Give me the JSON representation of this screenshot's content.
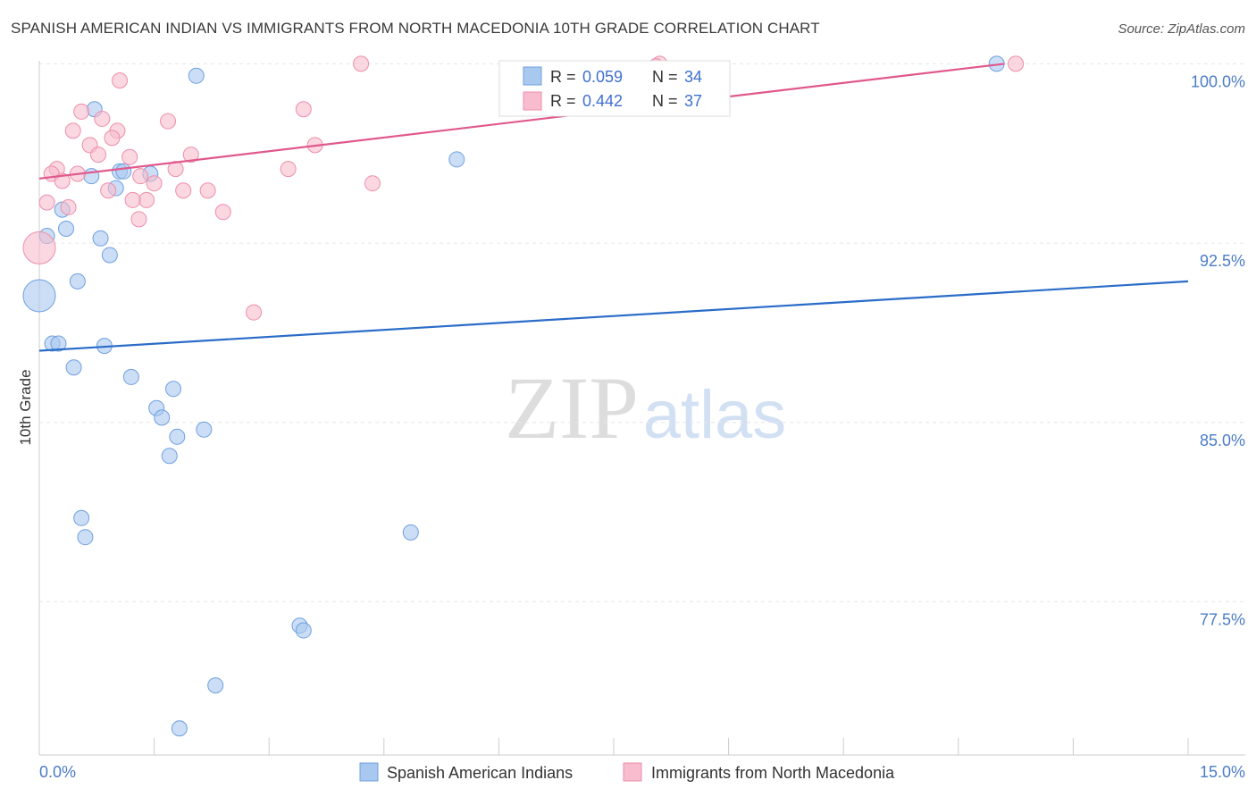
{
  "header": {
    "title": "SPANISH AMERICAN INDIAN VS IMMIGRANTS FROM NORTH MACEDONIA 10TH GRADE CORRELATION CHART",
    "source": "Source: ZipAtlas.com"
  },
  "watermark": {
    "zip": "ZIP",
    "atlas": "atlas"
  },
  "chart_data": {
    "type": "scatter",
    "title": "SPANISH AMERICAN INDIAN VS IMMIGRANTS FROM NORTH MACEDONIA 10TH GRADE CORRELATION CHART",
    "ylabel": "10th Grade",
    "xlim": [
      0,
      15
    ],
    "ylim": [
      71.2,
      100.8
    ],
    "x_tick_labels": [
      "0.0%",
      "15.0%"
    ],
    "y_ticks": [
      {
        "value": 100.0,
        "label": "100.0%"
      },
      {
        "value": 92.5,
        "label": "92.5%"
      },
      {
        "value": 85.0,
        "label": "85.0%"
      },
      {
        "value": 77.5,
        "label": "77.5%"
      }
    ],
    "legend": {
      "rows": [
        {
          "r_label": "R =",
          "r_value": "0.059",
          "n_label": "N =",
          "n_value": "34"
        },
        {
          "r_label": "R =",
          "r_value": "0.442",
          "n_label": "N =",
          "n_value": "37"
        }
      ]
    },
    "series": [
      {
        "name": "Spanish American Indians",
        "color": "#a8c8f0",
        "stroke": "#6f9fe0",
        "line_color": "#2a6cc8",
        "trend": {
          "x0": 0.0,
          "y0": 88.0,
          "x1": 15.0,
          "y1": 90.9
        },
        "points": [
          {
            "x": 2.05,
            "y": 99.5,
            "s": 1
          },
          {
            "x": 0.72,
            "y": 98.1,
            "s": 1
          },
          {
            "x": 5.45,
            "y": 96.0,
            "s": 1
          },
          {
            "x": 1.05,
            "y": 95.5,
            "s": 1
          },
          {
            "x": 1.45,
            "y": 95.4,
            "s": 1
          },
          {
            "x": 0.68,
            "y": 95.3,
            "s": 1
          },
          {
            "x": 1.0,
            "y": 94.8,
            "s": 1
          },
          {
            "x": 0.3,
            "y": 93.9,
            "s": 1
          },
          {
            "x": 0.35,
            "y": 93.1,
            "s": 1
          },
          {
            "x": 0.1,
            "y": 92.8,
            "s": 1
          },
          {
            "x": 0.8,
            "y": 92.7,
            "s": 1
          },
          {
            "x": 0.92,
            "y": 92.0,
            "s": 1
          },
          {
            "x": 0.5,
            "y": 90.9,
            "s": 1
          },
          {
            "x": 0.0,
            "y": 90.3,
            "s": 2
          },
          {
            "x": 0.17,
            "y": 88.3,
            "s": 1
          },
          {
            "x": 0.25,
            "y": 88.3,
            "s": 1
          },
          {
            "x": 0.85,
            "y": 88.2,
            "s": 1
          },
          {
            "x": 0.45,
            "y": 87.3,
            "s": 1
          },
          {
            "x": 1.2,
            "y": 86.9,
            "s": 1
          },
          {
            "x": 1.75,
            "y": 86.4,
            "s": 1
          },
          {
            "x": 1.53,
            "y": 85.6,
            "s": 1
          },
          {
            "x": 1.6,
            "y": 85.2,
            "s": 1
          },
          {
            "x": 2.15,
            "y": 84.7,
            "s": 1
          },
          {
            "x": 1.8,
            "y": 84.4,
            "s": 1
          },
          {
            "x": 1.7,
            "y": 83.6,
            "s": 1
          },
          {
            "x": 0.55,
            "y": 81.0,
            "s": 1
          },
          {
            "x": 0.6,
            "y": 80.2,
            "s": 1
          },
          {
            "x": 4.85,
            "y": 80.4,
            "s": 1
          },
          {
            "x": 3.4,
            "y": 76.5,
            "s": 1
          },
          {
            "x": 3.45,
            "y": 76.3,
            "s": 1
          },
          {
            "x": 2.3,
            "y": 74.0,
            "s": 1
          },
          {
            "x": 1.83,
            "y": 72.2,
            "s": 1
          },
          {
            "x": 12.5,
            "y": 100.0,
            "s": 1
          },
          {
            "x": 1.1,
            "y": 95.5,
            "s": 1
          }
        ]
      },
      {
        "name": "Immigrants from North Macedonia",
        "color": "#f7bccd",
        "stroke": "#ee8eaa",
        "line_color": "#e0588c",
        "trend": {
          "x0": 0.0,
          "y0": 95.2,
          "x1": 12.6,
          "y1": 100.0
        },
        "points": [
          {
            "x": 4.2,
            "y": 100.0,
            "s": 1
          },
          {
            "x": 8.1,
            "y": 100.0,
            "s": 1
          },
          {
            "x": 12.75,
            "y": 100.0,
            "s": 1
          },
          {
            "x": 1.05,
            "y": 99.3,
            "s": 1
          },
          {
            "x": 3.45,
            "y": 98.1,
            "s": 1
          },
          {
            "x": 0.55,
            "y": 98.0,
            "s": 1
          },
          {
            "x": 0.82,
            "y": 97.7,
            "s": 1
          },
          {
            "x": 1.68,
            "y": 97.6,
            "s": 1
          },
          {
            "x": 0.44,
            "y": 97.2,
            "s": 1
          },
          {
            "x": 1.02,
            "y": 97.2,
            "s": 1
          },
          {
            "x": 0.95,
            "y": 96.9,
            "s": 1
          },
          {
            "x": 0.66,
            "y": 96.6,
            "s": 1
          },
          {
            "x": 3.6,
            "y": 96.6,
            "s": 1
          },
          {
            "x": 0.77,
            "y": 96.2,
            "s": 1
          },
          {
            "x": 1.98,
            "y": 96.2,
            "s": 1
          },
          {
            "x": 1.18,
            "y": 96.1,
            "s": 1
          },
          {
            "x": 0.23,
            "y": 95.6,
            "s": 1
          },
          {
            "x": 1.78,
            "y": 95.6,
            "s": 1
          },
          {
            "x": 3.25,
            "y": 95.6,
            "s": 1
          },
          {
            "x": 0.16,
            "y": 95.4,
            "s": 1
          },
          {
            "x": 0.5,
            "y": 95.4,
            "s": 1
          },
          {
            "x": 1.32,
            "y": 95.3,
            "s": 1
          },
          {
            "x": 0.3,
            "y": 95.1,
            "s": 1
          },
          {
            "x": 1.5,
            "y": 95.0,
            "s": 1
          },
          {
            "x": 4.35,
            "y": 95.0,
            "s": 1
          },
          {
            "x": 0.9,
            "y": 94.7,
            "s": 1
          },
          {
            "x": 1.88,
            "y": 94.7,
            "s": 1
          },
          {
            "x": 2.2,
            "y": 94.7,
            "s": 1
          },
          {
            "x": 1.4,
            "y": 94.3,
            "s": 1
          },
          {
            "x": 1.22,
            "y": 94.3,
            "s": 1
          },
          {
            "x": 0.1,
            "y": 94.2,
            "s": 1
          },
          {
            "x": 0.38,
            "y": 94.0,
            "s": 1
          },
          {
            "x": 2.4,
            "y": 93.8,
            "s": 1
          },
          {
            "x": 1.3,
            "y": 93.5,
            "s": 1
          },
          {
            "x": 0.0,
            "y": 92.3,
            "s": 2
          },
          {
            "x": 2.8,
            "y": 89.6,
            "s": 1
          },
          {
            "x": 8.05,
            "y": 99.9,
            "s": 1
          }
        ]
      }
    ]
  }
}
